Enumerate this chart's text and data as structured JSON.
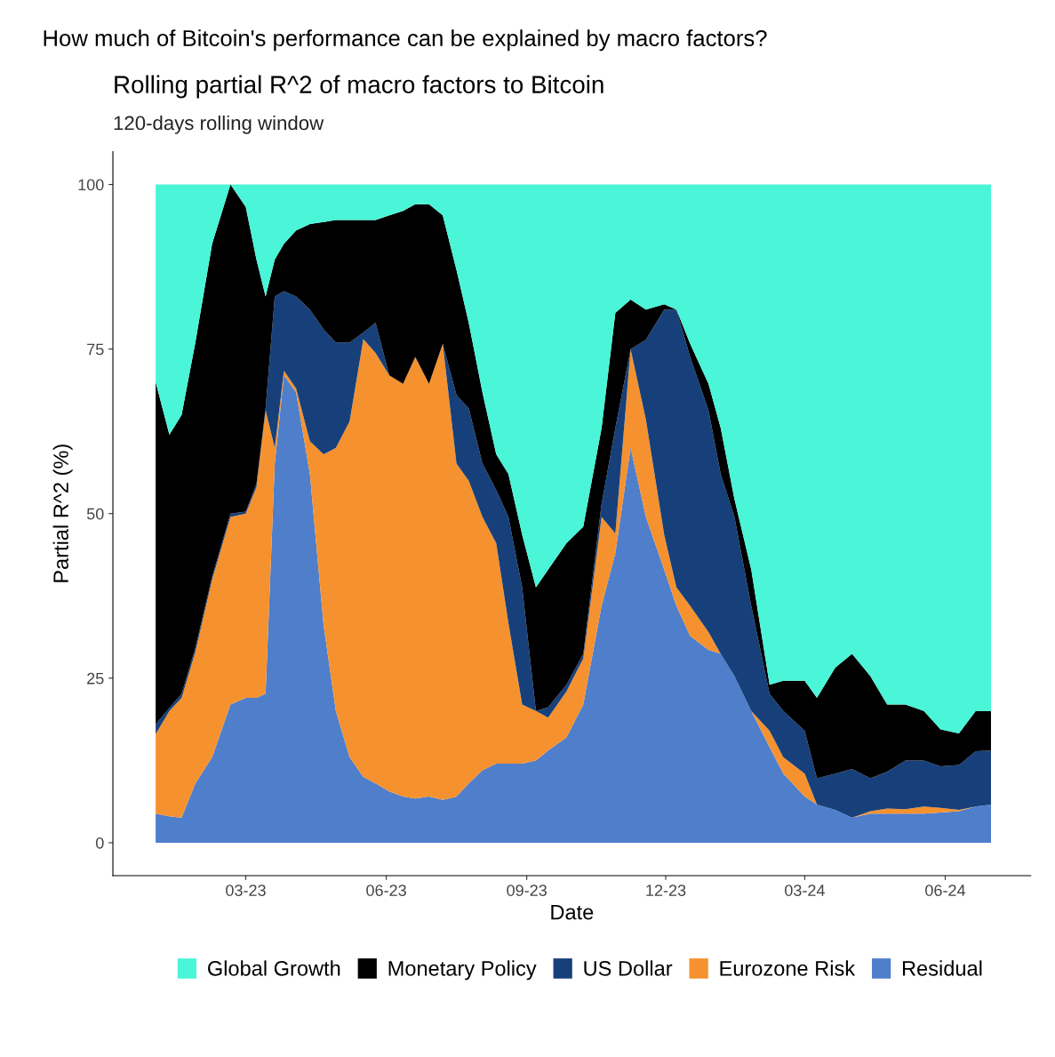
{
  "chart_data": {
    "type": "area",
    "stacked": true,
    "title": "How much of Bitcoin's performance can be explained by macro factors?",
    "subtitle": "Rolling partial R^2 of macro factors to Bitcoin",
    "annotations": [
      "120-days rolling window"
    ],
    "xlabel": "Date",
    "ylabel": "Partial R^2 (%)",
    "x": [
      "2023-01-01",
      "2023-01-10",
      "2023-01-18",
      "2023-01-27",
      "2023-02-07",
      "2023-02-19",
      "2023-03-01",
      "2023-03-08",
      "2023-03-14",
      "2023-03-20",
      "2023-03-26",
      "2023-04-03",
      "2023-04-12",
      "2023-04-21",
      "2023-04-29",
      "2023-05-08",
      "2023-05-17",
      "2023-05-25",
      "2023-06-03",
      "2023-06-12",
      "2023-06-20",
      "2023-06-29",
      "2023-07-08",
      "2023-07-17",
      "2023-07-25",
      "2023-08-03",
      "2023-08-12",
      "2023-08-20",
      "2023-08-29",
      "2023-09-07",
      "2023-09-15",
      "2023-09-27",
      "2023-10-08",
      "2023-10-20",
      "2023-10-29",
      "2023-11-08",
      "2023-11-18",
      "2023-11-30",
      "2023-12-08",
      "2023-12-17",
      "2023-12-29",
      "2024-01-06",
      "2024-01-15",
      "2024-01-26",
      "2024-02-07",
      "2024-02-16",
      "2024-03-01",
      "2024-03-09",
      "2024-03-21",
      "2024-04-01",
      "2024-04-13",
      "2024-04-24",
      "2024-05-06",
      "2024-05-18",
      "2024-05-29",
      "2024-06-10",
      "2024-06-21",
      "2024-07-01"
    ],
    "series": [
      {
        "name": "Residual",
        "color": "#4f7ecb",
        "values": [
          4.4,
          4,
          3.8,
          9,
          13,
          21,
          22,
          22,
          22.6,
          57.6,
          71,
          68.4,
          56,
          33,
          20,
          13,
          10,
          9,
          7.8,
          7,
          6.7,
          7,
          6.5,
          7,
          9,
          11,
          12,
          12,
          12,
          12.5,
          14,
          16,
          21,
          36,
          44,
          60,
          49.5,
          41.5,
          36,
          31.4,
          29.3,
          28.7,
          25.3,
          20,
          14.5,
          10.5,
          7,
          5.8,
          5,
          3.8,
          4.4,
          4.4,
          4.4,
          4.4,
          4.6,
          4.8,
          5.5,
          5.8
        ]
      },
      {
        "name": "Eurozone Risk",
        "color": "#f5922f",
        "values": [
          12.1,
          16,
          18.2,
          20,
          27,
          28.5,
          28,
          32,
          43.1,
          2.4,
          0.7,
          0.6,
          5,
          26,
          40,
          51,
          66.5,
          65.4,
          63.2,
          62.7,
          67.1,
          62.7,
          69.3,
          50.6,
          46,
          38.5,
          33.5,
          21.4,
          9,
          7.5,
          5,
          7,
          7,
          13.5,
          3,
          15,
          14.8,
          5.3,
          2.8,
          4.6,
          2.7,
          0,
          0,
          0,
          2.5,
          2.5,
          3.5,
          0,
          0,
          0,
          0.4,
          0.8,
          0.7,
          1.1,
          0.7,
          0.2,
          0,
          0
        ]
      },
      {
        "name": "US Dollar",
        "color": "#17407a",
        "values": [
          1.5,
          0.5,
          0.6,
          0.6,
          0.4,
          0.5,
          0.3,
          0.5,
          0.3,
          23,
          12.1,
          14,
          20,
          19,
          16,
          12,
          1,
          4.6,
          0,
          0,
          0,
          0,
          0,
          10.4,
          11,
          8.1,
          8.1,
          16.1,
          17.8,
          0,
          1.6,
          1,
          0.7,
          2,
          16,
          0,
          12.1,
          34.2,
          42.2,
          37.8,
          33.7,
          27.3,
          24.2,
          16,
          5.6,
          7,
          6.5,
          4,
          5.5,
          7.4,
          5,
          5.6,
          7.4,
          7,
          6.3,
          6.8,
          8.4,
          8.2
        ]
      },
      {
        "name": "Monetary Policy",
        "color": "#000000",
        "values": [
          52,
          41.5,
          42.4,
          46.4,
          50.6,
          50,
          46.3,
          34.1,
          17,
          5.6,
          7.2,
          10,
          13,
          16.3,
          18.6,
          18.6,
          17.1,
          15.6,
          24.3,
          26.3,
          23.2,
          27.3,
          19.5,
          19,
          13,
          10.8,
          5.4,
          6.5,
          8,
          18.8,
          20.9,
          21.5,
          19.3,
          11.5,
          17.5,
          7.5,
          4.6,
          0.8,
          0,
          2,
          4,
          7,
          2.7,
          5.5,
          1.4,
          4.6,
          7.6,
          12.2,
          16.1,
          17.5,
          15.5,
          10.2,
          8.5,
          7.5,
          5.6,
          4.8,
          6.1,
          6
        ]
      },
      {
        "name": "Global Growth",
        "color": "#4af5d8",
        "values": [
          30,
          38,
          35,
          24,
          9,
          0,
          3.4,
          11.4,
          17,
          11.4,
          9,
          7,
          6,
          5.7,
          5.4,
          5.4,
          5.4,
          5.4,
          4.7,
          4,
          3,
          3,
          4.7,
          13,
          21,
          31.6,
          41,
          44,
          53.2,
          61.2,
          58.5,
          54.5,
          52,
          37,
          19.5,
          17.5,
          19,
          18.2,
          19,
          24.2,
          30.3,
          37,
          47.8,
          58.5,
          76,
          75.4,
          75.4,
          78,
          73.4,
          71.3,
          74.7,
          79,
          79,
          80,
          82.8,
          83.4,
          80,
          80
        ]
      }
    ],
    "ylim": [
      -5,
      105
    ],
    "yticks": [
      0,
      25,
      50,
      75,
      100
    ],
    "xlim": [
      "2022-12-04",
      "2024-07-27"
    ],
    "xticks": [
      {
        "value": "2023-03-01",
        "label": "03-23"
      },
      {
        "value": "2023-06-01",
        "label": "06-23"
      },
      {
        "value": "2023-09-01",
        "label": "09-23"
      },
      {
        "value": "2023-12-01",
        "label": "12-23"
      },
      {
        "value": "2024-03-01",
        "label": "03-24"
      },
      {
        "value": "2024-06-01",
        "label": "06-24"
      }
    ],
    "grid": false,
    "legend": "bottom"
  }
}
